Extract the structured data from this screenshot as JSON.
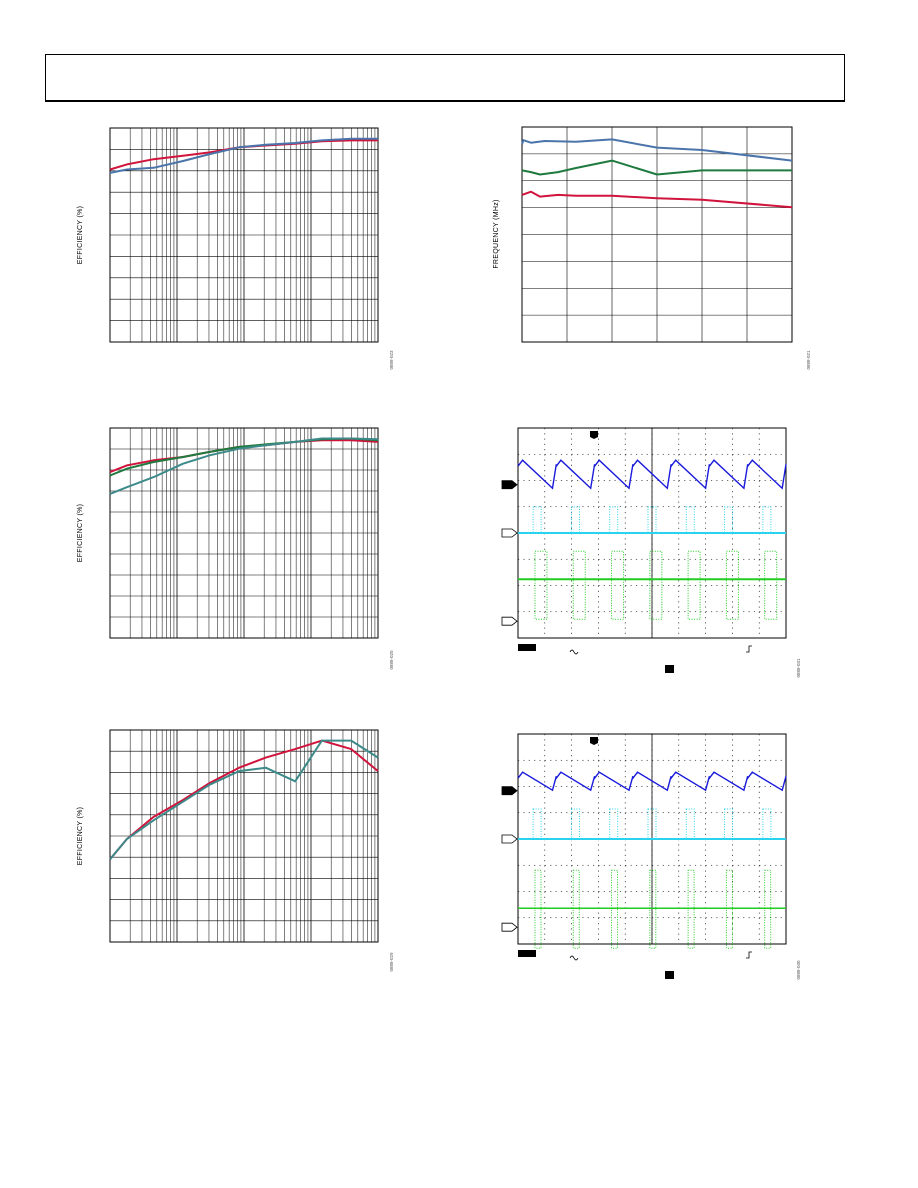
{
  "header": {},
  "colors": {
    "red": "#d0143c",
    "steelblue": "#4a74aa",
    "green": "#1e7a3e",
    "teal": "#3d8a8a",
    "blue": "#1a1adc",
    "cyan": "#29d3ee",
    "lightgreen": "#22cc22"
  },
  "chart_data": [
    {
      "type": "line",
      "ylabel": "EFFICIENCY (%)",
      "figure_id": "0888-023",
      "x_scale": "log",
      "series": [
        {
          "color": "red",
          "x": [
            0.05,
            0.1,
            0.3,
            1,
            3,
            10,
            30,
            100,
            300,
            1000,
            3000
          ],
          "y": [
            0.82,
            0.85,
            0.88,
            0.9,
            0.92,
            0.95,
            0.96,
            0.97,
            0.985,
            0.99,
            0.99
          ]
        },
        {
          "color": "steelblue",
          "x": [
            0.05,
            0.1,
            0.3,
            1,
            3,
            10,
            30,
            100,
            300,
            1000,
            3000
          ],
          "y": [
            0.8,
            0.82,
            0.83,
            0.87,
            0.91,
            0.95,
            0.965,
            0.975,
            0.99,
            1.0,
            1.0
          ]
        }
      ]
    },
    {
      "type": "line",
      "ylabel": "FREQUENCY (MHz)",
      "figure_id": "0888-021",
      "series": [
        {
          "color": "steelblue",
          "x": [
            0,
            0.03,
            0.2,
            0.5,
            1.2,
            2.0,
            3.0,
            4.0,
            6.0
          ],
          "y": [
            0.92,
            0.97,
            0.94,
            0.96,
            0.95,
            0.98,
            0.88,
            0.85,
            0.72
          ]
        },
        {
          "color": "green",
          "x": [
            0,
            0.2,
            0.4,
            0.8,
            1.2,
            2.0,
            3.0,
            4.0,
            6.0
          ],
          "y": [
            0.6,
            0.58,
            0.55,
            0.58,
            0.63,
            0.72,
            0.55,
            0.6,
            0.6
          ]
        },
        {
          "color": "red",
          "x": [
            0,
            0.2,
            0.4,
            0.8,
            1.2,
            2.0,
            3.0,
            4.0,
            6.0
          ],
          "y": [
            0.3,
            0.34,
            0.28,
            0.3,
            0.29,
            0.29,
            0.26,
            0.24,
            0.15
          ]
        }
      ]
    },
    {
      "type": "line",
      "ylabel": "EFFICIENCY (%)",
      "figure_id": "0888-020",
      "x_scale": "log",
      "series": [
        {
          "color": "red",
          "x": [
            0.05,
            0.1,
            0.3,
            1,
            3,
            10,
            30,
            100,
            300,
            1000,
            3000
          ],
          "y": [
            0.8,
            0.84,
            0.87,
            0.89,
            0.92,
            0.95,
            0.96,
            0.98,
            0.99,
            0.99,
            0.98
          ]
        },
        {
          "color": "green",
          "x": [
            0.05,
            0.1,
            0.3,
            1,
            3,
            10,
            30,
            100,
            300,
            1000,
            3000
          ],
          "y": [
            0.78,
            0.82,
            0.86,
            0.89,
            0.92,
            0.95,
            0.965,
            0.98,
            0.995,
            1.0,
            0.99
          ]
        },
        {
          "color": "teal",
          "x": [
            0.05,
            0.1,
            0.3,
            1,
            3,
            10,
            30,
            100,
            300,
            1000,
            3000
          ],
          "y": [
            0.67,
            0.71,
            0.77,
            0.85,
            0.9,
            0.94,
            0.96,
            0.98,
            1.0,
            1.0,
            0.995
          ]
        }
      ]
    },
    {
      "type": "line",
      "figure_id": "0888-031"
    },
    {
      "type": "line",
      "ylabel": "EFFICIENCY (%)",
      "figure_id": "0888-029",
      "x_scale": "log",
      "series": [
        {
          "color": "red",
          "x": [
            0.05,
            0.1,
            0.3,
            1,
            3,
            10,
            30,
            100,
            300,
            1000,
            3000
          ],
          "y": [
            0.3,
            0.42,
            0.55,
            0.65,
            0.75,
            0.84,
            0.9,
            0.95,
            1.0,
            0.95,
            0.82
          ]
        },
        {
          "color": "teal",
          "x": [
            0.05,
            0.1,
            0.3,
            1,
            3,
            10,
            30,
            100,
            300,
            1000,
            3000
          ],
          "y": [
            0.3,
            0.42,
            0.53,
            0.64,
            0.74,
            0.82,
            0.84,
            0.76,
            1.0,
            1.0,
            0.9
          ]
        }
      ]
    },
    {
      "type": "line",
      "figure_id": "0888-030"
    }
  ]
}
